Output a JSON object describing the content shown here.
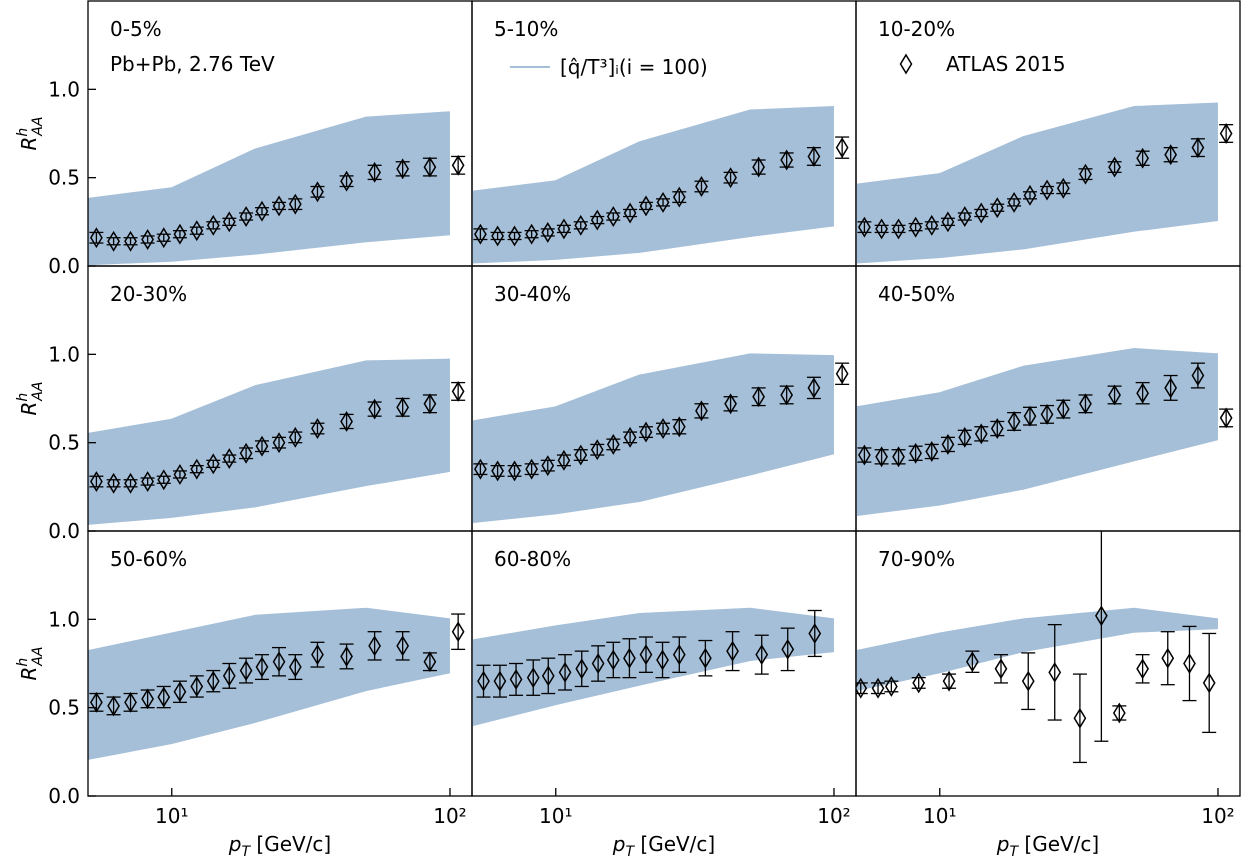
{
  "chart_data": [
    {
      "type": "line",
      "label": "0-5%",
      "annotation": "Pb+Pb, 2.76 TeV",
      "ylabel": {
        "base": "R",
        "sup": "h",
        "sub": "AA"
      },
      "xlim": [
        5,
        120
      ],
      "ylim": [
        0,
        1.5
      ],
      "log_x": true,
      "yticks": [
        {
          "value": 0,
          "label": "0.0"
        },
        {
          "value": 0.5,
          "label": "0.5"
        },
        {
          "value": 1,
          "label": "1.0"
        }
      ],
      "model": {
        "color": "#a5bfd8",
        "x": [
          5,
          10,
          20,
          50,
          100
        ],
        "lower": [
          0.01,
          0.03,
          0.07,
          0.14,
          0.18
        ],
        "upper": [
          0.38,
          0.44,
          0.66,
          0.84,
          0.87
        ]
      },
      "points": {
        "color": "#000000",
        "x": [
          5.36,
          6.18,
          7.11,
          8.19,
          9.36,
          10.7,
          12.3,
          14.1,
          16.1,
          18.5,
          21.1,
          24.3,
          27.8,
          33.4,
          42.5,
          53.6,
          67.6,
          84.7,
          107
        ],
        "values": [
          0.16,
          0.14,
          0.14,
          0.15,
          0.16,
          0.18,
          0.2,
          0.23,
          0.25,
          0.28,
          0.31,
          0.34,
          0.35,
          0.42,
          0.48,
          0.53,
          0.55,
          0.56,
          0.57
        ],
        "errors": [
          0.03,
          0.02,
          0.02,
          0.02,
          0.02,
          0.02,
          0.02,
          0.02,
          0.02,
          0.02,
          0.02,
          0.02,
          0.03,
          0.03,
          0.03,
          0.04,
          0.04,
          0.05,
          0.05
        ]
      }
    },
    {
      "type": "line",
      "label": "5-10%",
      "xlim": [
        5,
        120
      ],
      "ylim": [
        0,
        1.5
      ],
      "log_x": true,
      "model": {
        "name": "[q̂/T³]ᵢ(i = 100)",
        "color": "#a5bfd8",
        "x": [
          5,
          10,
          20,
          50,
          100
        ],
        "lower": [
          0.02,
          0.04,
          0.08,
          0.17,
          0.23
        ],
        "upper": [
          0.42,
          0.48,
          0.7,
          0.88,
          0.9
        ]
      },
      "points": {
        "color": "#000000",
        "x": [
          5.36,
          6.18,
          7.11,
          8.19,
          9.36,
          10.7,
          12.3,
          14.1,
          16.1,
          18.5,
          21.1,
          24.3,
          27.8,
          33.4,
          42.5,
          53.6,
          67.6,
          84.7,
          107
        ],
        "values": [
          0.18,
          0.17,
          0.17,
          0.18,
          0.19,
          0.21,
          0.23,
          0.26,
          0.28,
          0.3,
          0.34,
          0.36,
          0.39,
          0.45,
          0.5,
          0.56,
          0.6,
          0.62,
          0.67
        ],
        "errors": [
          0.03,
          0.02,
          0.02,
          0.02,
          0.02,
          0.02,
          0.02,
          0.02,
          0.02,
          0.02,
          0.02,
          0.02,
          0.03,
          0.03,
          0.03,
          0.04,
          0.04,
          0.05,
          0.06
        ]
      }
    },
    {
      "type": "line",
      "label": "10-20%",
      "xlim": [
        5,
        120
      ],
      "ylim": [
        0,
        1.5
      ],
      "log_x": true,
      "model": {
        "color": "#a5bfd8",
        "x": [
          5,
          10,
          20,
          50,
          100
        ],
        "lower": [
          0.02,
          0.05,
          0.1,
          0.2,
          0.26
        ],
        "upper": [
          0.46,
          0.52,
          0.73,
          0.9,
          0.92
        ]
      },
      "points": {
        "name": "ATLAS 2015",
        "color": "#000000",
        "x": [
          5.36,
          6.18,
          7.11,
          8.19,
          9.36,
          10.7,
          12.3,
          14.1,
          16.1,
          18.5,
          21.1,
          24.3,
          27.8,
          33.4,
          42.5,
          53.6,
          67.6,
          84.7,
          107
        ],
        "values": [
          0.22,
          0.21,
          0.21,
          0.22,
          0.23,
          0.25,
          0.28,
          0.3,
          0.33,
          0.36,
          0.4,
          0.43,
          0.44,
          0.52,
          0.56,
          0.61,
          0.63,
          0.67,
          0.75
        ],
        "errors": [
          0.03,
          0.02,
          0.02,
          0.02,
          0.02,
          0.02,
          0.02,
          0.02,
          0.02,
          0.02,
          0.02,
          0.02,
          0.03,
          0.03,
          0.03,
          0.04,
          0.04,
          0.05,
          0.05
        ]
      }
    },
    {
      "type": "line",
      "label": "20-30%",
      "ylabel": {
        "base": "R",
        "sup": "h",
        "sub": "AA"
      },
      "xlim": [
        5,
        120
      ],
      "ylim": [
        0,
        1.5
      ],
      "log_x": true,
      "yticks": [
        {
          "value": 0,
          "label": "0.0"
        },
        {
          "value": 0.5,
          "label": "0.5"
        },
        {
          "value": 1,
          "label": "1.0"
        }
      ],
      "model": {
        "color": "#a5bfd8",
        "x": [
          5,
          10,
          20,
          50,
          100
        ],
        "lower": [
          0.04,
          0.08,
          0.14,
          0.26,
          0.34
        ],
        "upper": [
          0.55,
          0.63,
          0.82,
          0.96,
          0.97
        ]
      },
      "points": {
        "color": "#000000",
        "x": [
          5.36,
          6.18,
          7.11,
          8.19,
          9.36,
          10.7,
          12.3,
          14.1,
          16.1,
          18.5,
          21.1,
          24.3,
          27.8,
          33.4,
          42.5,
          53.6,
          67.6,
          84.7,
          107
        ],
        "values": [
          0.28,
          0.27,
          0.27,
          0.28,
          0.29,
          0.32,
          0.35,
          0.38,
          0.41,
          0.44,
          0.48,
          0.5,
          0.53,
          0.58,
          0.62,
          0.69,
          0.7,
          0.72,
          0.79
        ],
        "errors": [
          0.03,
          0.02,
          0.02,
          0.02,
          0.02,
          0.02,
          0.02,
          0.02,
          0.02,
          0.03,
          0.03,
          0.03,
          0.03,
          0.03,
          0.04,
          0.04,
          0.05,
          0.05,
          0.05
        ]
      }
    },
    {
      "type": "line",
      "label": "30-40%",
      "xlim": [
        5,
        120
      ],
      "ylim": [
        0,
        1.5
      ],
      "log_x": true,
      "model": {
        "color": "#a5bfd8",
        "x": [
          5,
          10,
          20,
          50,
          100
        ],
        "lower": [
          0.05,
          0.1,
          0.17,
          0.32,
          0.44
        ],
        "upper": [
          0.62,
          0.7,
          0.88,
          1,
          0.99
        ]
      },
      "points": {
        "color": "#000000",
        "x": [
          5.36,
          6.18,
          7.11,
          8.19,
          9.36,
          10.7,
          12.3,
          14.1,
          16.1,
          18.5,
          21.1,
          24.3,
          27.8,
          33.4,
          42.5,
          53.6,
          67.6,
          84.7,
          107
        ],
        "values": [
          0.35,
          0.34,
          0.34,
          0.35,
          0.37,
          0.4,
          0.43,
          0.46,
          0.49,
          0.53,
          0.56,
          0.58,
          0.59,
          0.68,
          0.72,
          0.76,
          0.77,
          0.81,
          0.89
        ],
        "errors": [
          0.03,
          0.03,
          0.03,
          0.03,
          0.03,
          0.03,
          0.03,
          0.03,
          0.03,
          0.03,
          0.03,
          0.03,
          0.04,
          0.04,
          0.04,
          0.05,
          0.05,
          0.06,
          0.06
        ]
      }
    },
    {
      "type": "line",
      "label": "40-50%",
      "xlim": [
        5,
        120
      ],
      "ylim": [
        0,
        1.5
      ],
      "log_x": true,
      "model": {
        "color": "#a5bfd8",
        "x": [
          5,
          10,
          20,
          50,
          100
        ],
        "lower": [
          0.09,
          0.15,
          0.24,
          0.4,
          0.52
        ],
        "upper": [
          0.7,
          0.78,
          0.93,
          1.03,
          1
        ]
      },
      "points": {
        "color": "#000000",
        "x": [
          5.36,
          6.18,
          7.11,
          8.19,
          9.36,
          10.7,
          12.3,
          14.1,
          16.1,
          18.5,
          21.1,
          24.3,
          27.8,
          33.4,
          42.5,
          53.6,
          67.6,
          84.7,
          107
        ],
        "values": [
          0.43,
          0.42,
          0.42,
          0.44,
          0.45,
          0.49,
          0.53,
          0.55,
          0.58,
          0.62,
          0.65,
          0.66,
          0.69,
          0.72,
          0.77,
          0.78,
          0.81,
          0.88,
          0.64
        ],
        "errors": [
          0.04,
          0.04,
          0.04,
          0.04,
          0.04,
          0.04,
          0.04,
          0.04,
          0.04,
          0.05,
          0.05,
          0.05,
          0.05,
          0.05,
          0.05,
          0.06,
          0.07,
          0.07,
          0.05
        ]
      }
    },
    {
      "type": "line",
      "label": "50-60%",
      "ylabel": {
        "base": "R",
        "sup": "h",
        "sub": "AA"
      },
      "xlabel": {
        "base": "p",
        "sub": "T",
        "rest": " [GeV/c]"
      },
      "xlim": [
        5,
        120
      ],
      "ylim": [
        0,
        1.5
      ],
      "log_x": true,
      "xticks": [
        {
          "value": 10,
          "label": "10¹"
        },
        {
          "value": 100,
          "label": "10²"
        }
      ],
      "yticks": [
        {
          "value": 0,
          "label": "0.0"
        },
        {
          "value": 0.5,
          "label": "0.5"
        },
        {
          "value": 1,
          "label": "1.0"
        }
      ],
      "model": {
        "color": "#a5bfd8",
        "x": [
          5,
          10,
          20,
          50,
          100
        ],
        "lower": [
          0.21,
          0.3,
          0.42,
          0.6,
          0.7
        ],
        "upper": [
          0.82,
          0.92,
          1.02,
          1.06,
          1
        ]
      },
      "points": {
        "color": "#000000",
        "x": [
          5.36,
          6.18,
          7.11,
          8.19,
          9.36,
          10.7,
          12.3,
          14.1,
          16.1,
          18.5,
          21.1,
          24.3,
          27.8,
          33.4,
          42.5,
          53.6,
          67.6,
          84.7,
          107
        ],
        "values": [
          0.53,
          0.51,
          0.53,
          0.55,
          0.56,
          0.59,
          0.62,
          0.65,
          0.68,
          0.71,
          0.73,
          0.76,
          0.73,
          0.8,
          0.79,
          0.85,
          0.85,
          0.76,
          0.93
        ],
        "errors": [
          0.05,
          0.05,
          0.05,
          0.05,
          0.06,
          0.06,
          0.06,
          0.06,
          0.07,
          0.07,
          0.07,
          0.08,
          0.07,
          0.07,
          0.07,
          0.08,
          0.08,
          0.05,
          0.1
        ]
      }
    },
    {
      "type": "line",
      "label": "60-80%",
      "xlabel": {
        "base": "p",
        "sub": "T",
        "rest": " [GeV/c]"
      },
      "xlim": [
        5,
        120
      ],
      "ylim": [
        0,
        1.5
      ],
      "log_x": true,
      "xticks": [
        {
          "value": 10,
          "label": "10¹"
        },
        {
          "value": 100,
          "label": "10²"
        }
      ],
      "model": {
        "color": "#a5bfd8",
        "x": [
          5,
          10,
          20,
          50,
          100
        ],
        "lower": [
          0.4,
          0.52,
          0.63,
          0.77,
          0.82
        ],
        "upper": [
          0.88,
          0.96,
          1.03,
          1.06,
          1
        ]
      },
      "points": {
        "color": "#000000",
        "x": [
          5.5,
          6.3,
          7.2,
          8.3,
          9.4,
          10.8,
          12.4,
          14.2,
          16.1,
          18.4,
          21.1,
          24.2,
          27.8,
          34.5,
          43.2,
          55,
          68.2,
          85.3
        ],
        "values": [
          0.65,
          0.65,
          0.66,
          0.67,
          0.68,
          0.7,
          0.72,
          0.75,
          0.77,
          0.78,
          0.8,
          0.77,
          0.8,
          0.78,
          0.82,
          0.8,
          0.83,
          0.92
        ],
        "errors": [
          0.09,
          0.09,
          0.09,
          0.1,
          0.1,
          0.1,
          0.1,
          0.1,
          0.1,
          0.11,
          0.1,
          0.1,
          0.1,
          0.1,
          0.11,
          0.11,
          0.12,
          0.13
        ]
      }
    },
    {
      "type": "line",
      "label": "70-90%",
      "xlabel": {
        "base": "p",
        "sub": "T",
        "rest": " [GeV/c]"
      },
      "xlim": [
        5,
        120
      ],
      "ylim": [
        0,
        1.5
      ],
      "log_x": true,
      "xticks": [
        {
          "value": 10,
          "label": "10¹"
        },
        {
          "value": 100,
          "label": "10²"
        }
      ],
      "model": {
        "color": "#a5bfd8",
        "x": [
          5,
          10,
          20,
          50,
          100
        ],
        "lower": [
          0.6,
          0.7,
          0.82,
          0.93,
          0.95
        ],
        "upper": [
          0.82,
          0.92,
          1,
          1.06,
          1
        ]
      },
      "points": {
        "color": "#000000",
        "x": [
          5.2,
          6,
          6.7,
          8.4,
          10.8,
          13.1,
          16.6,
          20.8,
          25.9,
          31.9,
          38.1,
          44.2,
          53.6,
          66,
          79,
          93
        ],
        "values": [
          0.61,
          0.61,
          0.62,
          0.64,
          0.65,
          0.76,
          0.72,
          0.65,
          0.7,
          0.44,
          1.02,
          0.47,
          0.72,
          0.78,
          0.75,
          0.64
        ],
        "errors": [
          0.03,
          0.03,
          0.03,
          0.03,
          0.04,
          0.06,
          0.08,
          0.16,
          0.27,
          0.25,
          0.71,
          0.04,
          0.08,
          0.15,
          0.21,
          0.28
        ]
      }
    }
  ]
}
